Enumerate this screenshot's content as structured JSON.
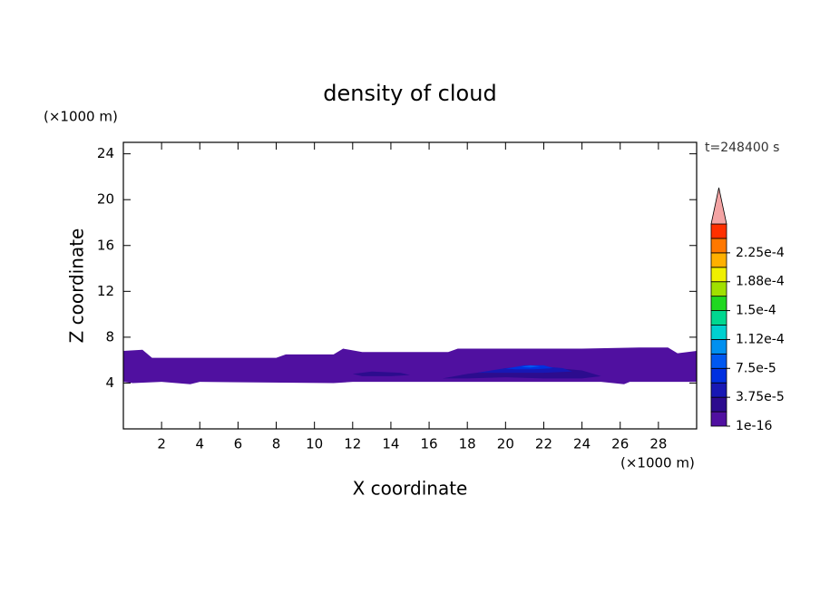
{
  "chart_data": {
    "type": "contour",
    "title": "density of cloud",
    "xlabel": "X coordinate",
    "ylabel": "Z coordinate",
    "x_unit_label": "(×1000 m)",
    "y_unit_label": "(×1000 m)",
    "annotation": "t=248400 s",
    "xlim": [
      0,
      30
    ],
    "ylim": [
      0,
      25
    ],
    "xticks": [
      2,
      4,
      6,
      8,
      10,
      12,
      14,
      16,
      18,
      20,
      22,
      24,
      26,
      28
    ],
    "yticks": [
      4,
      8,
      12,
      16,
      20,
      24
    ],
    "colorbar": {
      "clim": [
        1e-16,
        0.0002625
      ],
      "levels": [
        1e-16,
        1.875e-05,
        3.75e-05,
        5.625e-05,
        7.5e-05,
        9.375e-05,
        0.0001125,
        0.00013125,
        0.00015,
        0.00016875,
        0.0001875,
        0.00020625,
        0.000225,
        0.00024375
      ],
      "colors": [
        "#5010a0",
        "#2c0c8e",
        "#1818b4",
        "#0030e0",
        "#0058f0",
        "#0090f0",
        "#00d0d0",
        "#00d890",
        "#20d820",
        "#a0e000",
        "#f0f000",
        "#ffb000",
        "#ff7800",
        "#ff3000"
      ],
      "extend_color": "#f4a4a4",
      "ticks": [
        {
          "value": 1e-16,
          "label": "1e-16"
        },
        {
          "value": 3.75e-05,
          "label": "3.75e-5"
        },
        {
          "value": 7.5e-05,
          "label": "7.5e-5"
        },
        {
          "value": 0.0001125,
          "label": "1.12e-4"
        },
        {
          "value": 0.00015,
          "label": "1.5e-4"
        },
        {
          "value": 0.0001875,
          "label": "1.88e-4"
        },
        {
          "value": 0.000225,
          "label": "2.25e-4"
        }
      ]
    },
    "contours": [
      {
        "level": 1e-16,
        "x": [
          0,
          1,
          1.5,
          8,
          8.5,
          11,
          11.5,
          12.5,
          17,
          17.5,
          24,
          27,
          28.5,
          29,
          30,
          30,
          26.5,
          26.2,
          25,
          17,
          12,
          11,
          4,
          3.5,
          2,
          0.5,
          0
        ],
        "y": [
          6.8,
          6.9,
          6.2,
          6.2,
          6.5,
          6.5,
          7.0,
          6.7,
          6.7,
          7.0,
          7.0,
          7.1,
          7.1,
          6.6,
          6.8,
          4.1,
          4.1,
          3.9,
          4.1,
          4.1,
          4.1,
          4.0,
          4.1,
          3.9,
          4.1,
          4.0,
          4.1
        ]
      },
      {
        "level": 1.875e-05,
        "x": [
          16.7,
          18,
          20,
          22,
          24,
          25,
          24,
          22,
          20,
          18
        ],
        "y": [
          4.4,
          4.8,
          5.2,
          5.4,
          5.1,
          4.6,
          4.4,
          4.4,
          4.5,
          4.4
        ]
      },
      {
        "level": 1.875e-05,
        "x": [
          12,
          13,
          14.5,
          15,
          14,
          12.5
        ],
        "y": [
          4.8,
          5.0,
          4.9,
          4.7,
          4.6,
          4.6
        ]
      },
      {
        "level": 3.75e-05,
        "x": [
          18.5,
          20,
          21.5,
          23,
          23.5,
          22,
          20,
          18.5
        ],
        "y": [
          4.9,
          5.3,
          5.5,
          5.3,
          5.0,
          4.9,
          4.9,
          4.9
        ]
      },
      {
        "level": 5.625e-05,
        "x": [
          20,
          21,
          22,
          22.5,
          21.5,
          20.5
        ],
        "y": [
          5.25,
          5.55,
          5.55,
          5.3,
          5.2,
          5.2
        ]
      },
      {
        "level": 7.5e-05,
        "x": [
          20.8,
          21.3,
          21.8,
          21.3
        ],
        "y": [
          5.4,
          5.55,
          5.45,
          5.35
        ]
      }
    ]
  }
}
